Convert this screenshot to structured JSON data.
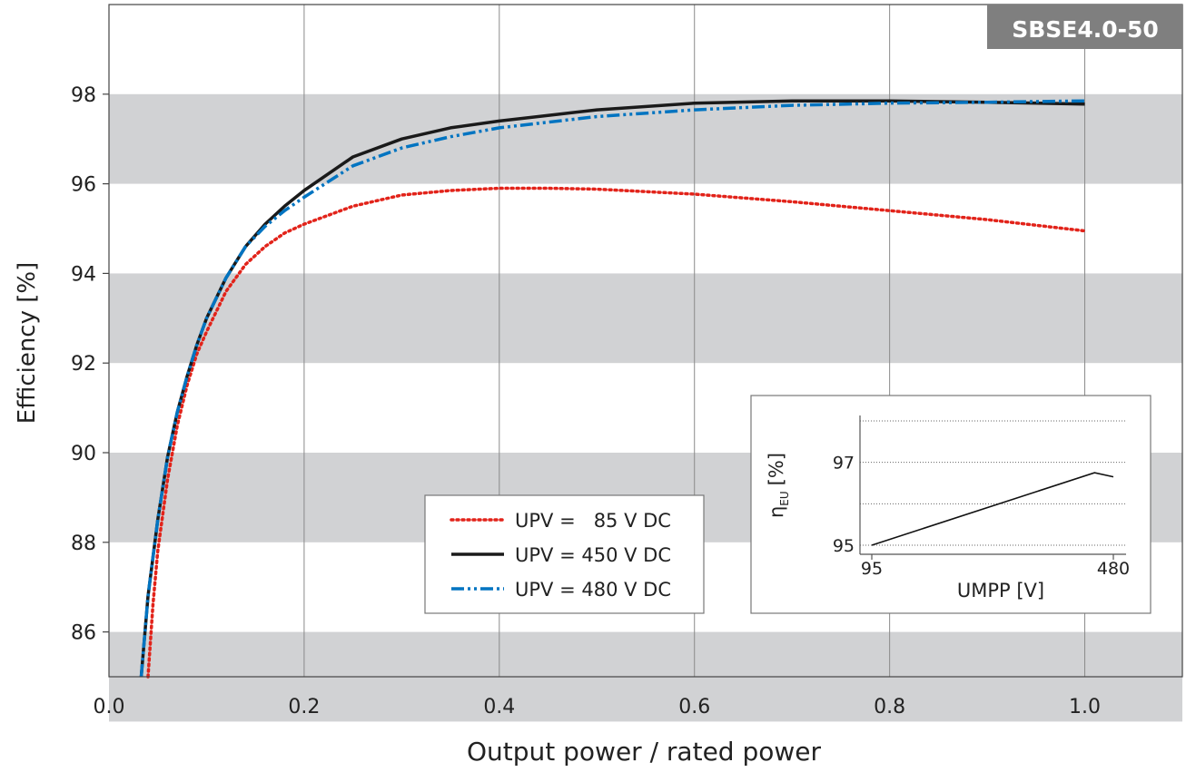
{
  "chart_data": {
    "type": "line",
    "title": "SBSE4.0-50",
    "xlabel": "Output power / rated power",
    "ylabel": "Efficiency [%]",
    "xlim": [
      0.0,
      1.1
    ],
    "ylim": [
      85.0,
      100.0
    ],
    "x_ticks": [
      "0.0",
      "0.2",
      "0.4",
      "0.6",
      "0.8",
      "1.0"
    ],
    "y_ticks": [
      "86",
      "88",
      "90",
      "92",
      "94",
      "96",
      "98"
    ],
    "grid": "vertical lines with alternating gray horizontal bands",
    "legend_position": "lower-center",
    "series": [
      {
        "name": "UPV =   85 V DC",
        "color": "#e2231a",
        "style": "dotted",
        "x": [
          0.04,
          0.045,
          0.05,
          0.06,
          0.07,
          0.08,
          0.09,
          0.1,
          0.12,
          0.14,
          0.16,
          0.18,
          0.2,
          0.25,
          0.3,
          0.35,
          0.4,
          0.45,
          0.5,
          0.6,
          0.7,
          0.8,
          0.9,
          1.0
        ],
        "y": [
          85.0,
          86.6,
          87.8,
          89.4,
          90.6,
          91.5,
          92.2,
          92.7,
          93.6,
          94.2,
          94.6,
          94.9,
          95.1,
          95.5,
          95.75,
          95.85,
          95.9,
          95.9,
          95.88,
          95.77,
          95.6,
          95.4,
          95.2,
          94.95
        ]
      },
      {
        "name": "UPV = 450 V DC",
        "color": "#1a1a1a",
        "style": "solid",
        "x": [
          0.033,
          0.04,
          0.05,
          0.06,
          0.07,
          0.08,
          0.09,
          0.1,
          0.12,
          0.14,
          0.16,
          0.18,
          0.2,
          0.25,
          0.3,
          0.35,
          0.4,
          0.5,
          0.6,
          0.7,
          0.8,
          0.9,
          1.0
        ],
        "y": [
          85.0,
          86.8,
          88.5,
          89.9,
          90.9,
          91.7,
          92.4,
          93.0,
          93.9,
          94.6,
          95.1,
          95.5,
          95.85,
          96.6,
          97.0,
          97.25,
          97.4,
          97.65,
          97.8,
          97.85,
          97.85,
          97.82,
          97.78
        ]
      },
      {
        "name": "UPV = 480 V DC",
        "color": "#0074c1",
        "style": "dash-dot-dot",
        "x": [
          0.033,
          0.04,
          0.05,
          0.06,
          0.07,
          0.08,
          0.09,
          0.1,
          0.12,
          0.14,
          0.16,
          0.18,
          0.2,
          0.25,
          0.3,
          0.35,
          0.4,
          0.5,
          0.6,
          0.7,
          0.8,
          0.9,
          1.0
        ],
        "y": [
          85.0,
          86.8,
          88.5,
          89.9,
          90.9,
          91.7,
          92.4,
          93.0,
          93.9,
          94.6,
          95.05,
          95.4,
          95.7,
          96.4,
          96.8,
          97.05,
          97.25,
          97.5,
          97.65,
          97.75,
          97.8,
          97.82,
          97.85
        ]
      }
    ],
    "inset": {
      "type": "line",
      "xlabel": "UMPP [V]",
      "ylabel_main": "η",
      "ylabel_sub": "EU",
      "ylabel_unit": "[%]",
      "x_ticks": [
        "95",
        "480"
      ],
      "y_ticks": [
        "95",
        "97"
      ],
      "xlim": [
        95,
        480
      ],
      "ylim": [
        95,
        98
      ],
      "series": [
        {
          "x": [
            95,
            450,
            480
          ],
          "y": [
            95.0,
            96.75,
            96.65
          ]
        }
      ]
    }
  }
}
